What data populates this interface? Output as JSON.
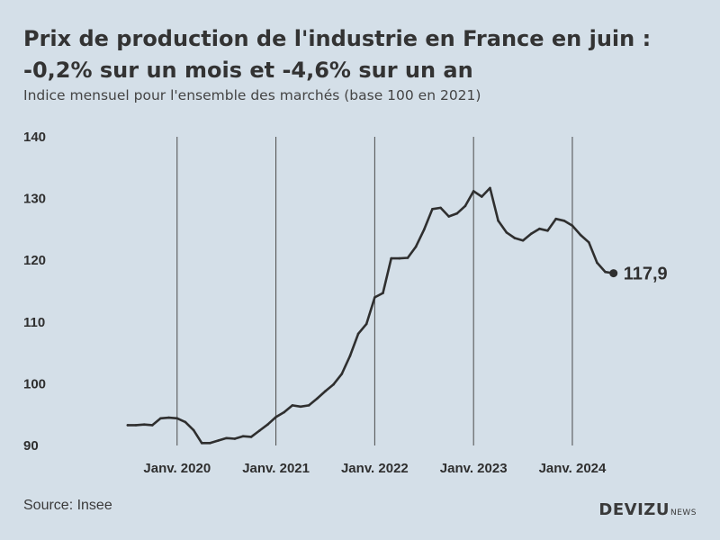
{
  "header": {
    "title": "Prix de production de l'industrie en France en juin : -0,2% sur un mois et -4,6% sur un an",
    "subtitle": "Indice mensuel pour l'ensemble des marchés (base 100 en 2021)"
  },
  "footer": {
    "source": "Source: Insee",
    "brand": "DEVIZU",
    "brand_suffix": "NEWS"
  },
  "colors": {
    "background": "#d4dfe8",
    "line": "#2f2f2f",
    "vertical_gridline": "#4a4a4a"
  },
  "chart_data": {
    "type": "line",
    "title": "Prix de production de l'industrie en France en juin : -0,2% sur un mois et -4,6% sur un an",
    "subtitle": "Indice mensuel pour l'ensemble des marchés (base 100 en 2021)",
    "xlabel": "",
    "ylabel": "",
    "ylim": [
      90,
      140
    ],
    "yticks": [
      90,
      100,
      110,
      120,
      130,
      140
    ],
    "xlim": [
      "2019-01",
      "2024-08"
    ],
    "xticks": [
      {
        "date": "2020-01",
        "label": "Janv. 2020"
      },
      {
        "date": "2021-01",
        "label": "Janv. 2021"
      },
      {
        "date": "2022-01",
        "label": "Janv. 2022"
      },
      {
        "date": "2023-01",
        "label": "Janv. 2023"
      },
      {
        "date": "2024-01",
        "label": "Janv. 2024"
      }
    ],
    "grid": "vertical lines at january ticks",
    "end_label": "117,9",
    "series": [
      {
        "x": [
          "2019-07",
          "2019-08",
          "2019-09",
          "2019-10",
          "2019-11",
          "2019-12",
          "2020-01",
          "2020-02",
          "2020-03",
          "2020-04",
          "2020-05",
          "2020-06",
          "2020-07",
          "2020-08",
          "2020-09",
          "2020-10",
          "2020-11",
          "2020-12",
          "2021-01",
          "2021-02",
          "2021-03",
          "2021-04",
          "2021-05",
          "2021-06",
          "2021-07",
          "2021-08",
          "2021-09",
          "2021-10",
          "2021-11",
          "2021-12",
          "2022-01",
          "2022-02",
          "2022-03",
          "2022-04",
          "2022-05",
          "2022-06",
          "2022-07",
          "2022-08",
          "2022-09",
          "2022-10",
          "2022-11",
          "2022-12",
          "2023-01",
          "2023-02",
          "2023-03",
          "2023-04",
          "2023-05",
          "2023-06",
          "2023-07",
          "2023-08",
          "2023-09",
          "2023-10",
          "2023-11",
          "2023-12",
          "2024-01",
          "2024-02",
          "2024-03",
          "2024-04",
          "2024-05",
          "2024-06"
        ],
        "values": [
          93.3,
          93.3,
          93.4,
          93.3,
          94.4,
          94.5,
          94.4,
          93.8,
          92.5,
          90.4,
          90.4,
          90.8,
          91.2,
          91.1,
          91.5,
          91.4,
          92.4,
          93.4,
          94.6,
          95.4,
          96.5,
          96.3,
          96.5,
          97.6,
          98.8,
          99.9,
          101.6,
          104.5,
          108.1,
          109.7,
          114.0,
          114.7,
          120.3,
          120.3,
          120.4,
          122.2,
          125.0,
          128.3,
          128.5,
          127.1,
          127.6,
          128.8,
          131.2,
          130.3,
          131.7,
          126.4,
          124.5,
          123.6,
          123.2,
          124.3,
          125.1,
          124.8,
          126.7,
          126.4,
          125.6,
          124.1,
          122.9,
          119.6,
          118.1,
          117.9
        ]
      }
    ]
  }
}
